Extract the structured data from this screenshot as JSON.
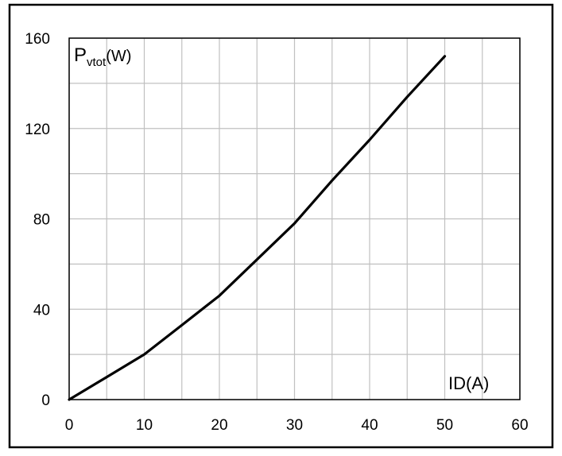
{
  "chart_data": {
    "type": "line",
    "title": "",
    "xlabel": "ID(A)",
    "ylabel": {
      "main": "P",
      "subscript": "vtot",
      "unit": "(W)"
    },
    "xlim": [
      0,
      60
    ],
    "ylim": [
      0,
      160
    ],
    "x_ticks": [
      0,
      10,
      20,
      30,
      40,
      50,
      60
    ],
    "y_ticks": [
      0,
      40,
      80,
      120,
      160
    ],
    "x_minor_step": 5,
    "y_minor_step": 20,
    "grid": true,
    "legend": "none",
    "series": [
      {
        "color": "#000000",
        "x": [
          0,
          5,
          10,
          15,
          20,
          25,
          30,
          35,
          40,
          45,
          50
        ],
        "y": [
          0,
          10,
          20,
          33,
          46,
          62,
          78,
          97,
          115,
          134,
          152
        ]
      }
    ]
  },
  "colors": {
    "frame": "#000000",
    "grid": "#c0c0c0",
    "line": "#000000",
    "background": "#ffffff"
  }
}
